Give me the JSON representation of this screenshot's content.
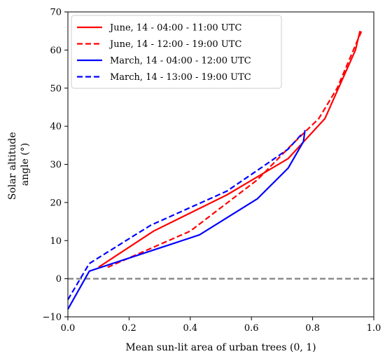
{
  "chart_data": {
    "type": "line",
    "title": "",
    "xlabel": "Mean sun-lit area of urban trees (0, 1)",
    "ylabel_lines": [
      "Solar altitude",
      "angle (°)"
    ],
    "xlim": [
      0,
      1
    ],
    "ylim": [
      -10,
      70
    ],
    "xticks": [
      0.0,
      0.2,
      0.4,
      0.6,
      0.8,
      1.0
    ],
    "xtick_labels": [
      "0.0",
      "0.2",
      "0.4",
      "0.6",
      "0.8",
      "1.0"
    ],
    "yticks": [
      -10,
      0,
      10,
      20,
      30,
      40,
      50,
      60,
      70
    ],
    "ytick_labels": [
      "−10",
      "0",
      "10",
      "20",
      "30",
      "40",
      "50",
      "60",
      "70"
    ],
    "grid": false,
    "legend_position": "top-left",
    "reference_line": {
      "y": 0,
      "color": "#808080",
      "style": "dashed"
    },
    "series": [
      {
        "name": "June, 14 - 04:00 - 11:00 UTC",
        "color": "#ff0000",
        "style": "solid",
        "x": [
          0.1,
          0.28,
          0.52,
          0.72,
          0.84,
          0.94,
          0.955
        ],
        "y": [
          3.0,
          12.5,
          22.0,
          31.5,
          42.0,
          60.0,
          65.0
        ]
      },
      {
        "name": "June, 14 - 12:00 - 19:00 UTC",
        "color": "#ff0000",
        "style": "dashed",
        "x": [
          0.13,
          0.4,
          0.62,
          0.73,
          0.82,
          0.88,
          0.96
        ],
        "y": [
          3.0,
          12.5,
          26.0,
          35.0,
          42.0,
          50.0,
          65.0
        ]
      },
      {
        "name": "March, 14 - 04:00 - 12:00 UTC",
        "color": "#0000ff",
        "style": "solid",
        "x": [
          0.0,
          0.07,
          0.43,
          0.62,
          0.72,
          0.77,
          0.775
        ],
        "y": [
          -8.0,
          2.0,
          11.5,
          21.0,
          29.0,
          36.0,
          39.0
        ]
      },
      {
        "name": "March, 14 - 13:00 - 19:00 UTC",
        "color": "#0000ff",
        "style": "dashed",
        "x": [
          0.0,
          0.07,
          0.27,
          0.52,
          0.63,
          0.72,
          0.765
        ],
        "y": [
          -5.5,
          4.0,
          14.0,
          23.0,
          29.0,
          34.0,
          38.0
        ]
      }
    ]
  }
}
